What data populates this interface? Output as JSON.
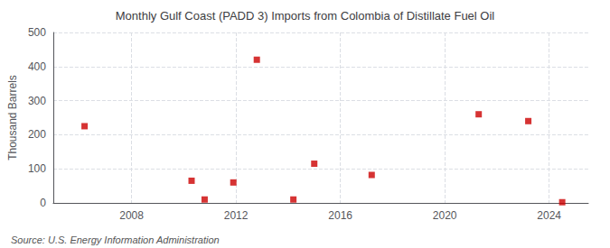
{
  "chart_data": {
    "type": "scatter",
    "title": "Monthly Gulf Coast (PADD 3) Imports from Colombia of Distillate Fuel Oil",
    "ylabel": "Thousand Barrels",
    "annotations": [
      "Source: U.S. Energy Information Administration"
    ],
    "x": [
      2006.2,
      2010.3,
      2010.8,
      2011.9,
      2012.8,
      2014.2,
      2015.0,
      2017.2,
      2021.3,
      2023.2,
      2024.5
    ],
    "values": [
      225,
      65,
      10,
      60,
      420,
      10,
      115,
      82,
      260,
      240,
      2
    ],
    "color": "#cc0000",
    "marker": "square",
    "xlim": [
      2005.0,
      2025.5
    ],
    "xticks": [
      2008,
      2012,
      2016,
      2020,
      2024
    ],
    "ylim": [
      0,
      500
    ],
    "yticks": [
      0,
      100,
      200,
      300,
      400,
      500
    ],
    "grid": true
  }
}
